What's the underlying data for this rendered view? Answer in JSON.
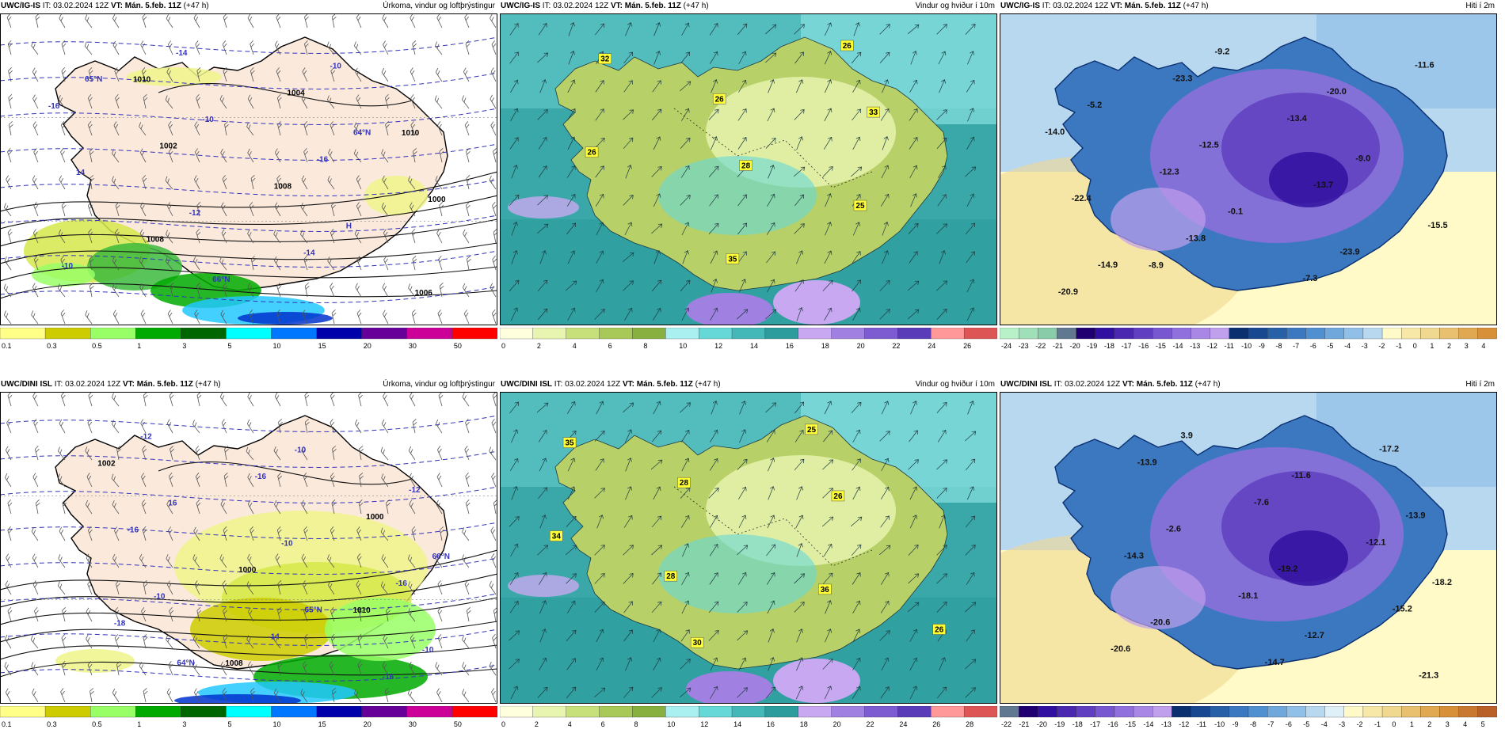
{
  "panels": [
    {
      "model": "UWC/IG-IS",
      "it_label": "IT:",
      "it_value": "03.02.2024 12Z",
      "vt_label": "VT:",
      "vt_value": "Mán. 5.feb. 11Z",
      "lead": "(+47 h)",
      "field_title": "Úrkoma, vindur og loftþrýstingur",
      "type": "precip",
      "colorbar": {
        "colors": [
          "#ffff88",
          "#cccc00",
          "#99ff66",
          "#00aa00",
          "#006600",
          "#00ffff",
          "#0077ff",
          "#0000aa",
          "#660099",
          "#cc0099",
          "#ff0000"
        ],
        "ticks": [
          "0.1",
          "0.3",
          "0.5",
          "1",
          "3",
          "5",
          "10",
          "15",
          "20",
          "30",
          "50"
        ]
      },
      "labels": [
        "1010",
        "1010",
        "1008",
        "1008",
        "1006",
        "1004",
        "1002",
        "1000",
        "-14",
        "-14",
        "-16",
        "-16",
        "-12",
        "-10",
        "-10",
        "-10",
        "14",
        "H",
        "66°N",
        "65°N",
        "64°N"
      ]
    },
    {
      "model": "UWC/IG-IS",
      "it_label": "IT:",
      "it_value": "03.02.2024 12Z",
      "vt_label": "VT:",
      "vt_value": "Mán. 5.feb. 11Z",
      "lead": "(+47 h)",
      "field_title": "Vindur og hviður í 10m",
      "type": "wind",
      "colorbar": {
        "colors": [
          "#ffffdd",
          "#e8f5b0",
          "#c8e07a",
          "#a8c858",
          "#88b040",
          "#aaf0f0",
          "#66d8d8",
          "#44b8b8",
          "#2c9c9c",
          "#c8a8f0",
          "#a080e0",
          "#7c5cd0",
          "#5a3cb8",
          "#ff9999",
          "#dd5555"
        ],
        "ticks": [
          "0",
          "2",
          "4",
          "6",
          "8",
          "10",
          "12",
          "14",
          "16",
          "18",
          "20",
          "22",
          "24",
          "26"
        ]
      },
      "labels": [
        "26",
        "26",
        "26",
        "25",
        "35",
        "32",
        "33",
        "28"
      ]
    },
    {
      "model": "UWC/IG-IS",
      "it_label": "IT:",
      "it_value": "03.02.2024 12Z",
      "vt_label": "VT:",
      "vt_value": "Mán. 5.feb. 11Z",
      "lead": "(+47 h)",
      "field_title": "Hiti í 2m",
      "type": "temp",
      "colorbar": {
        "colors": [
          "#b8f0c8",
          "#a0e0b8",
          "#88ccaa",
          "#607890",
          "#200070",
          "#3010a0",
          "#4a28b0",
          "#6040c0",
          "#7858d0",
          "#9070dc",
          "#a888e4",
          "#c0a0ec",
          "#0a3070",
          "#184890",
          "#2860a8",
          "#3c78c0",
          "#5090d0",
          "#70a8dc",
          "#90c0e8",
          "#b8d8f0",
          "#fffac8",
          "#f8e8a8",
          "#f0d890",
          "#e8c070",
          "#e0a850",
          "#d89038"
        ],
        "ticks": [
          "-24",
          "-23",
          "-22",
          "-21",
          "-20",
          "-19",
          "-18",
          "-17",
          "-16",
          "-15",
          "-14",
          "-13",
          "-12",
          "-11",
          "-10",
          "-9",
          "-8",
          "-7",
          "-6",
          "-5",
          "-4",
          "-3",
          "-2",
          "-1",
          "0",
          "1",
          "2",
          "3",
          "4"
        ]
      },
      "labels": [
        "-8.9",
        "-11.6",
        "-13.4",
        "-12.3",
        "-15.5",
        "-7.3",
        "-23.3",
        "-14.0",
        "-13.7",
        "-13.8",
        "-20.9",
        "-20.0",
        "-12.5",
        "-22.4",
        "-23.9",
        "-9.2",
        "-5.2",
        "-9.0",
        "-0.1",
        "-14.9"
      ]
    },
    {
      "model": "UWC/DINI ISL",
      "it_label": "IT:",
      "it_value": "03.02.2024 12Z",
      "vt_label": "VT:",
      "vt_value": "Mán. 5.feb. 11Z",
      "lead": "(+47 h)",
      "field_title": "Úrkoma, vindur og loftþrýstingur",
      "type": "precip",
      "colorbar": {
        "colors": [
          "#ffff88",
          "#cccc00",
          "#99ff66",
          "#00aa00",
          "#006600",
          "#00ffff",
          "#0077ff",
          "#0000aa",
          "#660099",
          "#cc0099",
          "#ff0000"
        ],
        "ticks": [
          "0.1",
          "0.3",
          "0.5",
          "1",
          "3",
          "5",
          "10",
          "15",
          "20",
          "30",
          "50"
        ]
      },
      "labels": [
        "1010",
        "1008",
        "1002",
        "1000",
        "1000",
        "-18",
        "-16",
        "-16",
        "-16",
        "-16",
        "-14",
        "-12",
        "-12",
        "-10",
        "-10",
        "-10",
        "-10",
        "16",
        "66°N",
        "65°N",
        "64°N"
      ]
    },
    {
      "model": "UWC/DINI ISL",
      "it_label": "IT:",
      "it_value": "03.02.2024 12Z",
      "vt_label": "VT:",
      "vt_value": "Mán. 5.feb. 11Z",
      "lead": "(+47 h)",
      "field_title": "Vindur og hviður í 10m",
      "type": "wind",
      "colorbar": {
        "colors": [
          "#ffffdd",
          "#e8f5b0",
          "#c8e07a",
          "#a8c858",
          "#88b040",
          "#aaf0f0",
          "#66d8d8",
          "#44b8b8",
          "#2c9c9c",
          "#c8a8f0",
          "#a080e0",
          "#7c5cd0",
          "#5a3cb8",
          "#ff9999",
          "#dd5555"
        ],
        "ticks": [
          "0",
          "2",
          "4",
          "6",
          "8",
          "10",
          "12",
          "14",
          "16",
          "18",
          "20",
          "22",
          "24",
          "26",
          "28"
        ]
      },
      "labels": [
        "28",
        "26",
        "25",
        "28",
        "34",
        "36",
        "30",
        "35",
        "26"
      ]
    },
    {
      "model": "UWC/DINI ISL",
      "it_label": "IT:",
      "it_value": "03.02.2024 12Z",
      "vt_label": "VT:",
      "vt_value": "Mán. 5.feb. 11Z",
      "lead": "(+47 h)",
      "field_title": "Hiti í 2m",
      "type": "temp",
      "colorbar": {
        "colors": [
          "#607890",
          "#200070",
          "#3010a0",
          "#4a28b0",
          "#6040c0",
          "#7858d0",
          "#9070dc",
          "#a888e4",
          "#c0a0ec",
          "#0a3070",
          "#184890",
          "#2860a8",
          "#3c78c0",
          "#5090d0",
          "#70a8dc",
          "#90c0e8",
          "#b8d8f0",
          "#e0f0f8",
          "#fffac8",
          "#f8e8a8",
          "#f0d890",
          "#e8c070",
          "#e0a850",
          "#d89038",
          "#c87830",
          "#b86028"
        ],
        "ticks": [
          "-22",
          "-21",
          "-20",
          "-19",
          "-18",
          "-17",
          "-16",
          "-15",
          "-14",
          "-13",
          "-12",
          "-11",
          "-10",
          "-9",
          "-8",
          "-7",
          "-6",
          "-5",
          "-4",
          "-3",
          "-2",
          "-1",
          "0",
          "1",
          "2",
          "3",
          "4",
          "5"
        ]
      },
      "labels": [
        "-12.1",
        "-18.1",
        "-20.6",
        "-17.2",
        "-7.6",
        "-14.3",
        "-15.2",
        "-14.7",
        "-13.9",
        "-13.9",
        "-19.2",
        "-20.6",
        "-21.3",
        "-11.6",
        "-2.6",
        "-18.2",
        "-12.7",
        "3.9"
      ]
    }
  ]
}
